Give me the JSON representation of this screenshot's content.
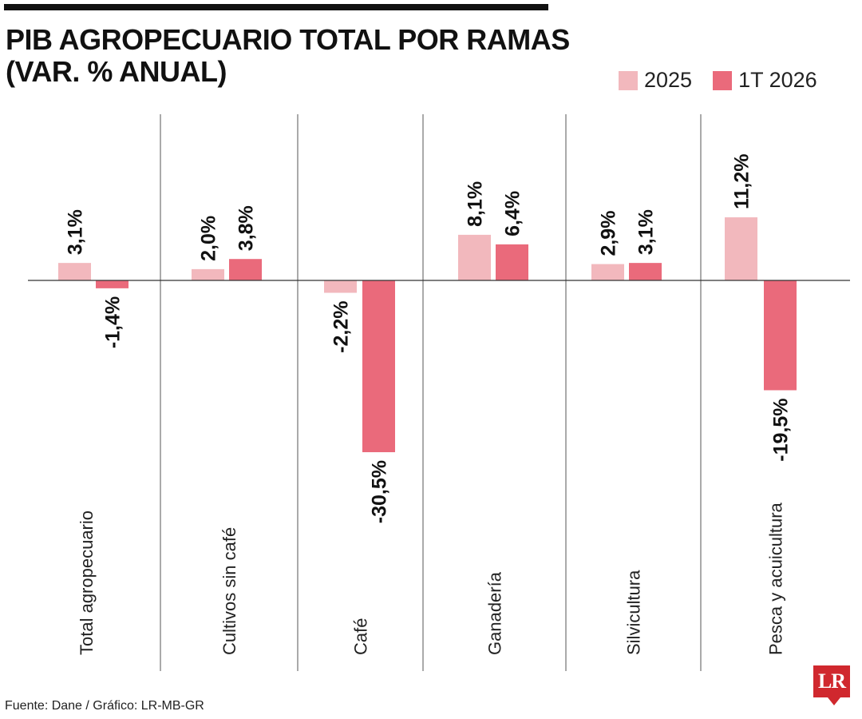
{
  "header": {
    "title_line1": "PIB AGROPECUARIO TOTAL POR RAMAS",
    "title_line2": "(VAR. % ANUAL)"
  },
  "legend": [
    {
      "label": "2025",
      "color": "#f2b8bd"
    },
    {
      "label": "1T 2026",
      "color": "#ea6a7b"
    }
  ],
  "chart_data": {
    "type": "bar",
    "title": "PIB AGROPECUARIO TOTAL POR RAMAS (VAR. % ANUAL)",
    "categories": [
      "Total agropecuario",
      "Cultivos sin café",
      "Café",
      "Ganadería",
      "Silvicultura",
      "Pesca y acuicultura"
    ],
    "series": [
      {
        "name": "2025",
        "values": [
          3.1,
          2.0,
          -2.2,
          8.1,
          2.9,
          11.2
        ],
        "labels": [
          "3,1%",
          "2,0%",
          "-2,2%",
          "8,1%",
          "2,9%",
          "11,2%"
        ],
        "color": "#f2b8bd"
      },
      {
        "name": "1T 2026",
        "values": [
          -1.4,
          3.8,
          -30.5,
          6.4,
          3.1,
          -19.5
        ],
        "labels": [
          "-1,4%",
          "3,8%",
          "-30,5%",
          "6,4%",
          "3,1%",
          "-19,5%"
        ],
        "color": "#ea6a7b"
      }
    ],
    "xlabel": "",
    "ylabel": "",
    "grid": false,
    "legend_position": "top-right"
  },
  "footer": {
    "source": "Fuente: Dane / Gráfico: LR-MB-GR",
    "logo_text": "LR"
  }
}
